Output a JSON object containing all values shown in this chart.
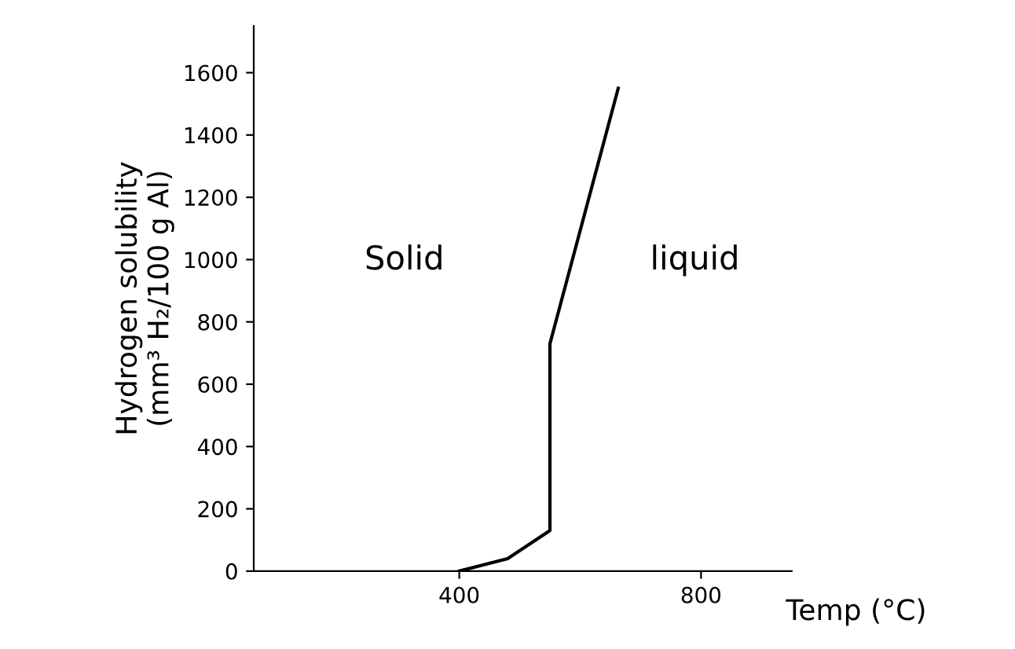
{
  "chart_data": {
    "type": "line",
    "xlabel": "Temp (°C)",
    "ylabel": "Hydrogen solubility\n(mm³ H₂/100 g Al)",
    "x": [
      400,
      480,
      550,
      550,
      663
    ],
    "series": [
      {
        "color": "#000000",
        "values": [
          0,
          40,
          130,
          730,
          1550
        ]
      }
    ],
    "xlim": [
      60,
      950
    ],
    "ylim": [
      0,
      1750
    ],
    "xticks": [
      400,
      800
    ],
    "yticks": [
      0,
      200,
      400,
      600,
      800,
      1000,
      1200,
      1400,
      1600
    ],
    "annotations": [
      "Solid",
      "liquid"
    ],
    "grid": false,
    "marker": "none",
    "line_style": "solid"
  }
}
